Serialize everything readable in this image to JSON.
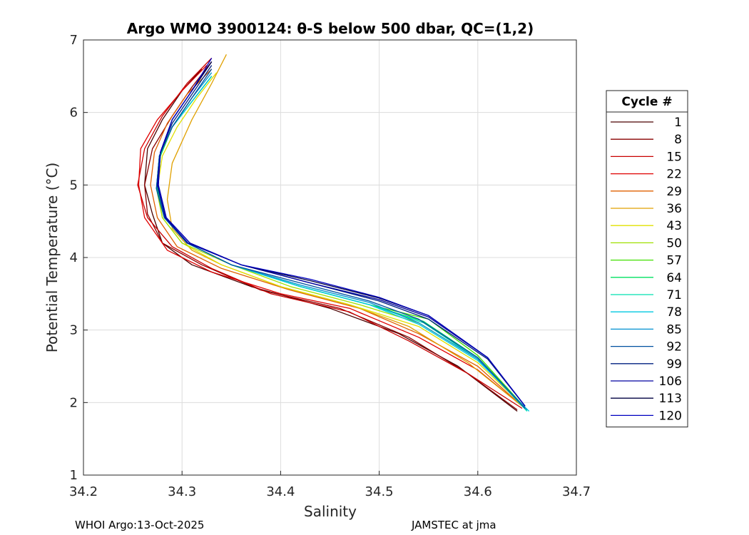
{
  "chart_data": {
    "type": "line",
    "title": "Argo WMO 3900124: θ-S below 500 dbar,  QC=(1,2)",
    "xlabel": "Salinity",
    "ylabel": "Potential Temperature (°C)",
    "xlim": [
      34.2,
      34.7
    ],
    "ylim": [
      1,
      7
    ],
    "xticks": [
      "34.2",
      "34.3",
      "34.4",
      "34.5",
      "34.6",
      "34.7"
    ],
    "yticks": [
      "1",
      "2",
      "3",
      "4",
      "5",
      "6",
      "7"
    ],
    "grid": true,
    "legend": {
      "title": "Cycle #",
      "position": "right",
      "entries": [
        {
          "label": "1",
          "color": "#4a0000"
        },
        {
          "label": "8",
          "color": "#8a0000"
        },
        {
          "label": "15",
          "color": "#c80000"
        },
        {
          "label": "22",
          "color": "#e00000"
        },
        {
          "label": "29",
          "color": "#e06000"
        },
        {
          "label": "36",
          "color": "#e0a000"
        },
        {
          "label": "43",
          "color": "#e0e000"
        },
        {
          "label": "50",
          "color": "#a0e000"
        },
        {
          "label": "57",
          "color": "#40e000"
        },
        {
          "label": "64",
          "color": "#00e060"
        },
        {
          "label": "71",
          "color": "#00e0b0"
        },
        {
          "label": "78",
          "color": "#00c8e0"
        },
        {
          "label": "85",
          "color": "#0090d0"
        },
        {
          "label": "92",
          "color": "#0050a0"
        },
        {
          "label": "99",
          "color": "#002080"
        },
        {
          "label": "106",
          "color": "#0000a0"
        },
        {
          "label": "113",
          "color": "#000040"
        },
        {
          "label": "120",
          "color": "#0000c0"
        }
      ]
    },
    "series": [
      {
        "name": "1",
        "color": "#4a0000",
        "x": [
          34.32,
          34.3,
          34.28,
          34.265,
          34.262,
          34.27,
          34.28,
          34.31,
          34.37,
          34.45,
          34.52,
          34.58,
          34.64
        ],
        "y": [
          6.6,
          6.3,
          5.9,
          5.5,
          5.0,
          4.6,
          4.2,
          3.9,
          3.6,
          3.3,
          2.95,
          2.5,
          1.88
        ]
      },
      {
        "name": "8",
        "color": "#8a0000",
        "x": [
          34.33,
          34.31,
          34.29,
          34.27,
          34.262,
          34.265,
          34.28,
          34.32,
          34.38,
          34.46,
          34.53,
          34.59,
          34.64
        ],
        "y": [
          6.7,
          6.35,
          5.95,
          5.5,
          5.0,
          4.6,
          4.2,
          3.9,
          3.55,
          3.3,
          2.9,
          2.4,
          1.9
        ]
      },
      {
        "name": "15",
        "color": "#c80000",
        "x": [
          34.33,
          34.305,
          34.28,
          34.262,
          34.255,
          34.265,
          34.29,
          34.33,
          34.39,
          34.47,
          34.53,
          34.59,
          34.645
        ],
        "y": [
          6.75,
          6.4,
          5.95,
          5.5,
          5.0,
          4.55,
          4.15,
          3.85,
          3.5,
          3.25,
          2.85,
          2.4,
          1.92
        ]
      },
      {
        "name": "22",
        "color": "#e00000",
        "x": [
          34.325,
          34.3,
          34.275,
          34.258,
          34.256,
          34.262,
          34.285,
          34.33,
          34.4,
          34.47,
          34.54,
          34.6,
          34.645
        ],
        "y": [
          6.65,
          6.3,
          5.9,
          5.5,
          5.0,
          4.55,
          4.1,
          3.8,
          3.5,
          3.3,
          2.9,
          2.45,
          1.95
        ]
      },
      {
        "name": "29",
        "color": "#e06000",
        "x": [
          34.33,
          34.305,
          34.285,
          34.272,
          34.268,
          34.275,
          34.295,
          34.34,
          34.41,
          34.48,
          34.54,
          34.6,
          34.645
        ],
        "y": [
          6.6,
          6.25,
          5.85,
          5.45,
          5.0,
          4.55,
          4.15,
          3.85,
          3.55,
          3.3,
          2.95,
          2.5,
          1.95
        ]
      },
      {
        "name": "36",
        "color": "#e0a000",
        "x": [
          34.345,
          34.33,
          34.31,
          34.29,
          34.285,
          34.29,
          34.31,
          34.34,
          34.4,
          34.47,
          34.53,
          34.59,
          34.645
        ],
        "y": [
          6.8,
          6.4,
          5.9,
          5.3,
          4.8,
          4.4,
          4.1,
          3.9,
          3.6,
          3.35,
          3.05,
          2.55,
          1.95
        ]
      },
      {
        "name": "43",
        "color": "#e0e000",
        "x": [
          34.335,
          34.315,
          34.295,
          34.28,
          34.275,
          34.28,
          34.3,
          34.34,
          34.4,
          34.47,
          34.54,
          34.6,
          34.648
        ],
        "y": [
          6.55,
          6.2,
          5.8,
          5.4,
          4.95,
          4.55,
          4.2,
          3.9,
          3.6,
          3.35,
          3.05,
          2.55,
          1.93
        ]
      },
      {
        "name": "50",
        "color": "#a0e000",
        "x": [
          34.33,
          34.31,
          34.29,
          34.278,
          34.274,
          34.28,
          34.3,
          34.35,
          34.41,
          34.48,
          34.54,
          34.6,
          34.648
        ],
        "y": [
          6.5,
          6.15,
          5.8,
          5.4,
          4.95,
          4.55,
          4.2,
          3.9,
          3.6,
          3.35,
          3.1,
          2.6,
          1.93
        ]
      },
      {
        "name": "57",
        "color": "#40e000",
        "x": [
          34.33,
          34.31,
          34.29,
          34.278,
          34.275,
          34.282,
          34.305,
          34.35,
          34.42,
          34.49,
          34.55,
          34.6,
          34.648
        ],
        "y": [
          6.5,
          6.15,
          5.8,
          5.4,
          4.95,
          4.55,
          4.2,
          3.9,
          3.6,
          3.35,
          3.15,
          2.65,
          1.93
        ]
      },
      {
        "name": "64",
        "color": "#00e060",
        "x": [
          34.33,
          34.31,
          34.29,
          34.278,
          34.275,
          34.282,
          34.305,
          34.35,
          34.42,
          34.49,
          34.545,
          34.6,
          34.65
        ],
        "y": [
          6.5,
          6.15,
          5.8,
          5.4,
          4.95,
          4.55,
          4.2,
          3.9,
          3.6,
          3.35,
          3.12,
          2.62,
          1.9
        ]
      },
      {
        "name": "71",
        "color": "#00e0b0",
        "x": [
          34.33,
          34.31,
          34.29,
          34.277,
          34.274,
          34.282,
          34.305,
          34.35,
          34.42,
          34.49,
          34.545,
          34.6,
          34.65
        ],
        "y": [
          6.5,
          6.15,
          5.8,
          5.4,
          4.95,
          4.55,
          4.2,
          3.9,
          3.6,
          3.35,
          3.1,
          2.6,
          1.88
        ]
      },
      {
        "name": "78",
        "color": "#00c8e0",
        "x": [
          34.33,
          34.31,
          34.29,
          34.277,
          34.274,
          34.282,
          34.305,
          34.35,
          34.42,
          34.49,
          34.54,
          34.6,
          34.652
        ],
        "y": [
          6.5,
          6.15,
          5.8,
          5.4,
          4.95,
          4.55,
          4.2,
          3.9,
          3.6,
          3.35,
          3.08,
          2.58,
          1.88
        ]
      },
      {
        "name": "85",
        "color": "#0090d0",
        "x": [
          34.33,
          34.31,
          34.29,
          34.277,
          34.274,
          34.282,
          34.305,
          34.35,
          34.42,
          34.49,
          34.54,
          34.6,
          34.65
        ],
        "y": [
          6.55,
          6.2,
          5.8,
          5.4,
          4.95,
          4.55,
          4.2,
          3.9,
          3.62,
          3.38,
          3.1,
          2.6,
          1.9
        ]
      },
      {
        "name": "92",
        "color": "#0050a0",
        "x": [
          34.33,
          34.31,
          34.29,
          34.277,
          34.274,
          34.282,
          34.305,
          34.35,
          34.42,
          34.49,
          34.54,
          34.6,
          34.648
        ],
        "y": [
          6.6,
          6.2,
          5.8,
          5.4,
          4.95,
          4.55,
          4.2,
          3.9,
          3.65,
          3.4,
          3.15,
          2.62,
          1.92
        ]
      },
      {
        "name": "99",
        "color": "#002080",
        "x": [
          34.33,
          34.31,
          34.29,
          34.278,
          34.275,
          34.283,
          34.306,
          34.36,
          34.43,
          34.5,
          34.55,
          34.61,
          34.648
        ],
        "y": [
          6.65,
          6.25,
          5.85,
          5.45,
          5.0,
          4.55,
          4.2,
          3.9,
          3.65,
          3.4,
          3.15,
          2.6,
          1.95
        ]
      },
      {
        "name": "106",
        "color": "#0000a0",
        "x": [
          34.33,
          34.31,
          34.29,
          34.278,
          34.275,
          34.283,
          34.306,
          34.36,
          34.43,
          34.5,
          34.55,
          34.61,
          34.648
        ],
        "y": [
          6.7,
          6.3,
          5.9,
          5.45,
          5.0,
          4.55,
          4.2,
          3.9,
          3.65,
          3.42,
          3.18,
          2.62,
          1.95
        ]
      },
      {
        "name": "113",
        "color": "#000040",
        "x": [
          34.33,
          34.31,
          34.29,
          34.278,
          34.276,
          34.284,
          34.308,
          34.36,
          34.43,
          34.5,
          34.55,
          34.61,
          34.648
        ],
        "y": [
          6.7,
          6.3,
          5.9,
          5.45,
          5.0,
          4.55,
          4.2,
          3.9,
          3.68,
          3.44,
          3.2,
          2.62,
          1.95
        ]
      },
      {
        "name": "120",
        "color": "#0000c0",
        "x": [
          34.33,
          34.31,
          34.29,
          34.278,
          34.276,
          34.284,
          34.308,
          34.36,
          34.43,
          34.5,
          34.55,
          34.61,
          34.648
        ],
        "y": [
          6.75,
          6.3,
          5.9,
          5.45,
          5.0,
          4.55,
          4.2,
          3.9,
          3.7,
          3.45,
          3.2,
          2.62,
          1.95
        ]
      }
    ]
  },
  "footer": {
    "left": "WHOI Argo:13-Oct-2025",
    "right": "JAMSTEC at jma"
  }
}
